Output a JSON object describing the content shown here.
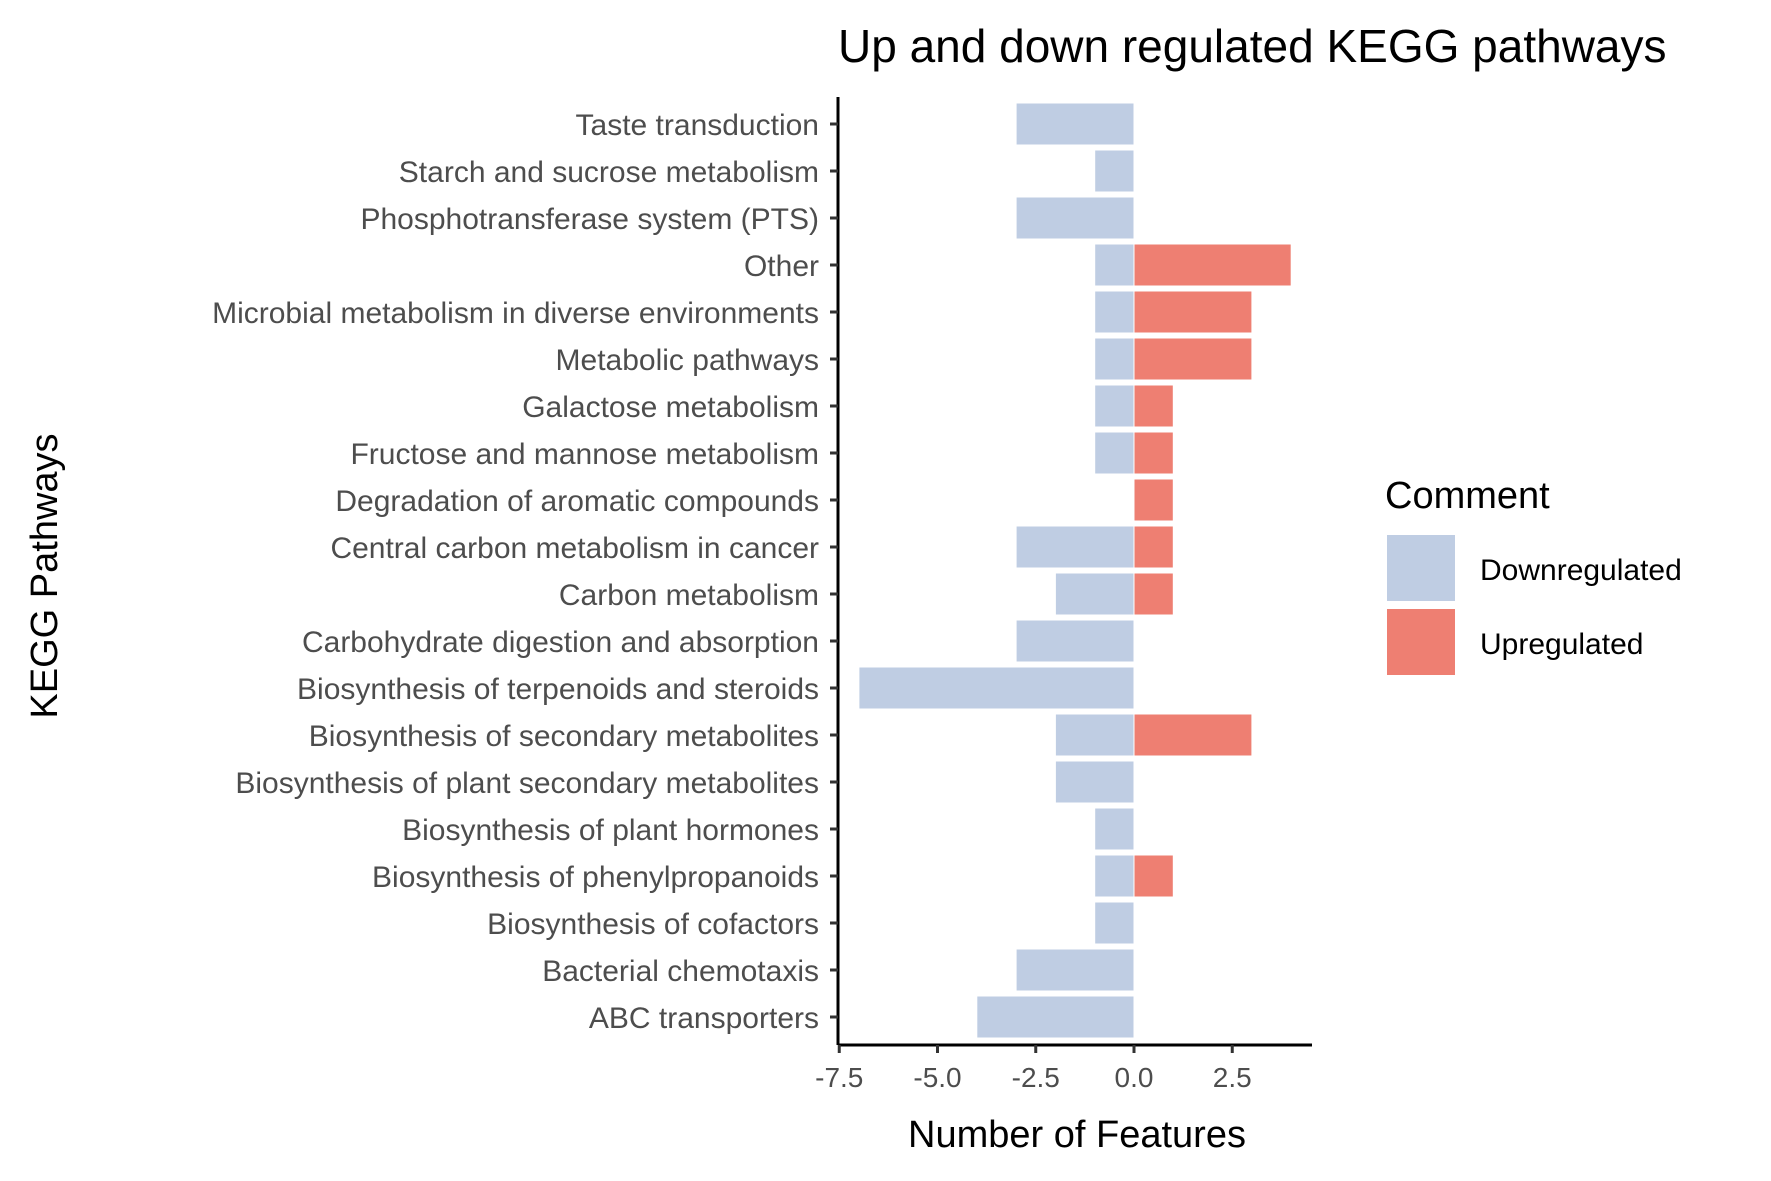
{
  "chart_data": {
    "type": "bar",
    "orientation": "horizontal",
    "title": "Up and down regulated KEGG pathways",
    "xlabel": "Number of Features",
    "ylabel": "KEGG Pathways",
    "xlim": [
      -7.3,
      4.5
    ],
    "xticks": [
      -7.5,
      -5.0,
      -2.5,
      0.0,
      2.5
    ],
    "xtick_labels": [
      "-7.5",
      "-5.0",
      "-2.5",
      "0.0",
      "2.5"
    ],
    "grid": false,
    "legend": {
      "title": "Comment",
      "position": "right"
    },
    "categories": [
      "Taste transduction",
      "Starch and sucrose metabolism",
      "Phosphotransferase system (PTS)",
      "Other",
      "Microbial metabolism in diverse environments",
      "Metabolic pathways",
      "Galactose metabolism",
      "Fructose and mannose metabolism",
      "Degradation of aromatic compounds",
      "Central carbon metabolism in cancer",
      "Carbon metabolism",
      "Carbohydrate digestion and absorption",
      "Biosynthesis of terpenoids and steroids",
      "Biosynthesis of secondary metabolites",
      "Biosynthesis of plant secondary metabolites",
      "Biosynthesis of plant hormones",
      "Biosynthesis of phenylpropanoids",
      "Biosynthesis of cofactors",
      "Bacterial chemotaxis",
      "ABC transporters"
    ],
    "series": [
      {
        "name": "Downregulated",
        "color": "#bfcde3",
        "values": [
          -3,
          -1,
          -3,
          -1,
          -1,
          -1,
          -1,
          -1,
          0,
          -3,
          -2,
          -3,
          -7,
          -2,
          -2,
          -1,
          -1,
          -1,
          -3,
          -4
        ]
      },
      {
        "name": "Upregulated",
        "color": "#ee7f72",
        "values": [
          0,
          0,
          0,
          4,
          3,
          3,
          1,
          1,
          1,
          1,
          1,
          0,
          0,
          3,
          0,
          0,
          1,
          0,
          0,
          0
        ]
      }
    ]
  }
}
